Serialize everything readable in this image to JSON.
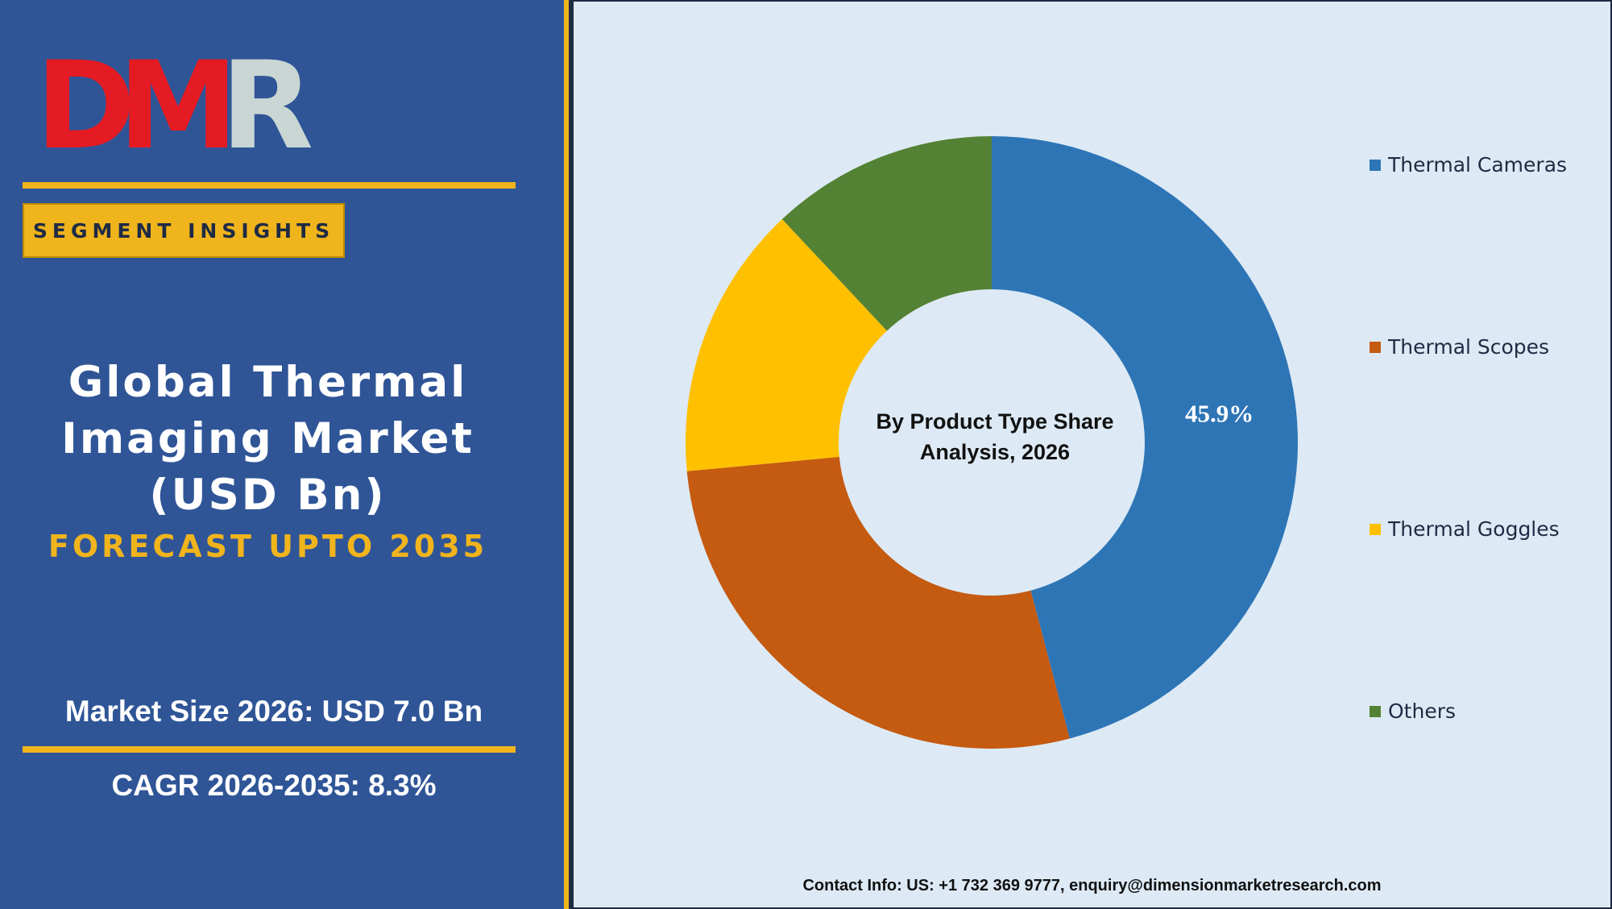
{
  "brand": {
    "logo_text": "DMR",
    "logo_colors": {
      "d": "#e41b23",
      "m": "#e41b23",
      "r": "#c9d6d3",
      "accent": "#ccd9d6"
    }
  },
  "segment_label": "SEGMENT INSIGHTS",
  "title_lines": [
    "Global Thermal",
    "Imaging Market",
    "(USD Bn)"
  ],
  "forecast_label": "FORECAST UPTO 2035",
  "market_size": "Market Size 2026: USD 7.0 Bn",
  "cagr": "CAGR 2026-2035: 8.3%",
  "contact": "Contact Info: US: +1 732 369 9777, enquiry@dimensionmarketresearch.com",
  "colors": {
    "panel_blue": "#2f5597",
    "accent_yellow": "#f0b41c",
    "chart_background": "#ddeaf5"
  },
  "chart_data": {
    "type": "pie",
    "variant": "donut",
    "center_label_lines": [
      "By Product Type Share",
      "Analysis, 2026"
    ],
    "categories": [
      "Thermal Cameras",
      "Thermal Scopes",
      "Thermal Goggles",
      "Others"
    ],
    "values": [
      45.9,
      27.6,
      14.5,
      12.0
    ],
    "colors": [
      "#2e75b6",
      "#c55a11",
      "#ffc000",
      "#548235"
    ],
    "data_labels": [
      "45.9%",
      "",
      "",
      ""
    ],
    "legend_position": "right"
  }
}
